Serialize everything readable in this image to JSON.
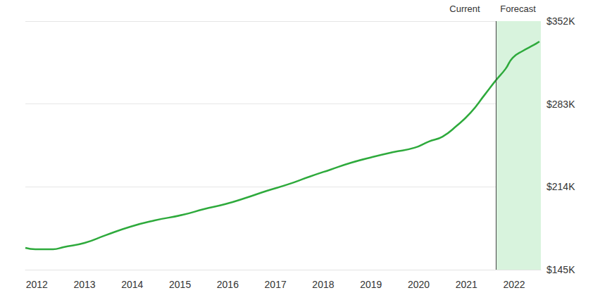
{
  "chart_data": {
    "type": "line",
    "x": [
      2011.76,
      2011.97,
      2012.34,
      2012.56,
      2013.0,
      2013.44,
      2013.96,
      2014.47,
      2015.06,
      2015.5,
      2015.94,
      2016.38,
      2016.82,
      2017.26,
      2017.71,
      2018.15,
      2018.59,
      2019.03,
      2019.47,
      2019.91,
      2020.21,
      2020.5,
      2020.79,
      2021.09,
      2021.38,
      2021.62,
      2021.82,
      2021.97,
      2022.19,
      2022.41,
      2022.53
    ],
    "values": [
      163200,
      162000,
      162000,
      163800,
      167300,
      173700,
      180800,
      186000,
      190700,
      195400,
      199500,
      204800,
      210700,
      216000,
      222400,
      228300,
      234100,
      238800,
      242900,
      246500,
      251700,
      255800,
      264600,
      275800,
      290500,
      302800,
      312200,
      321500,
      327400,
      332100,
      335000
    ],
    "color": "#2eaa3c",
    "xlim": [
      2011.76,
      2022.56
    ],
    "xticks": [
      2012,
      2013,
      2014,
      2015,
      2016,
      2017,
      2018,
      2019,
      2020,
      2021,
      2022
    ],
    "ylim": [
      145000,
      352000
    ],
    "yticks": [
      {
        "value": 145000,
        "label": "$145K"
      },
      {
        "value": 214000,
        "label": "$214K"
      },
      {
        "value": 283000,
        "label": "$283K"
      },
      {
        "value": 352000,
        "label": "$352K"
      }
    ],
    "forecast": {
      "start": 2021.62,
      "labels": [
        "Current",
        "Forecast"
      ]
    },
    "grid": true
  }
}
